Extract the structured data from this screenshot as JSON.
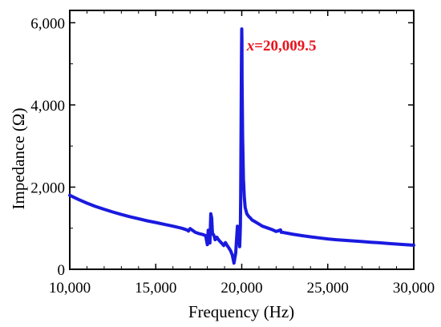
{
  "chart_data": {
    "type": "line",
    "title": "",
    "xlabel": "Frequency (Hz)",
    "ylabel": "Impedance (Ω)",
    "xlim": [
      10000,
      30000
    ],
    "ylim": [
      0,
      6300
    ],
    "xticks": [
      10000,
      15000,
      20000,
      25000,
      30000
    ],
    "xtick_labels": [
      "10,000",
      "15,000",
      "20,000",
      "25,000",
      "30,000"
    ],
    "yticks": [
      0,
      2000,
      4000,
      6000
    ],
    "ytick_labels": [
      "0",
      "2,000",
      "4,000",
      "6,000"
    ],
    "grid": false,
    "legend": "none",
    "line_color": "#1a1adf",
    "annotation": {
      "prefix": "x",
      "text": "=20,009.5",
      "color": "#e8141c",
      "x": 20009.5
    },
    "series": [
      {
        "x": [
          10000,
          10500,
          11000,
          11500,
          12000,
          12500,
          13000,
          13500,
          14000,
          14500,
          15000,
          15500,
          16000,
          16500,
          16800,
          16900,
          17000,
          17300,
          17500,
          17700,
          17900,
          18000,
          18050,
          18100,
          18150,
          18200,
          18250,
          18300,
          18350,
          18400,
          18450,
          18550,
          18650,
          18750,
          18850,
          18950,
          19050,
          19150,
          19250,
          19350,
          19450,
          19550,
          19650,
          19700,
          19750,
          19800,
          19850,
          19880,
          19900,
          19920,
          19940,
          19960,
          19980,
          20000,
          20010,
          20020,
          20050,
          20100,
          20150,
          20200,
          20300,
          20400,
          20500,
          20600,
          20800,
          21000,
          21200,
          21400,
          21600,
          21800,
          22000,
          22150,
          22250,
          22300,
          22400,
          22500,
          23000,
          23500,
          24000,
          24500,
          25000,
          25500,
          26000,
          26500,
          27000,
          27500,
          28000,
          28500,
          29000,
          29500,
          30000
        ],
        "y": [
          1800,
          1700,
          1610,
          1530,
          1460,
          1395,
          1335,
          1280,
          1230,
          1180,
          1140,
          1095,
          1050,
          1000,
          960,
          930,
          990,
          900,
          870,
          850,
          820,
          600,
          950,
          700,
          640,
          1350,
          1250,
          860,
          850,
          800,
          720,
          780,
          720,
          670,
          630,
          580,
          650,
          580,
          520,
          450,
          350,
          150,
          400,
          750,
          1050,
          900,
          700,
          550,
          800,
          1050,
          1800,
          3200,
          5000,
          5850,
          5600,
          4600,
          3200,
          2200,
          1750,
          1500,
          1350,
          1290,
          1250,
          1200,
          1150,
          1100,
          1050,
          1020,
          990,
          960,
          920,
          940,
          960,
          900,
          900,
          890,
          850,
          820,
          790,
          765,
          740,
          720,
          705,
          690,
          675,
          660,
          645,
          630,
          615,
          600,
          585
        ]
      }
    ]
  }
}
